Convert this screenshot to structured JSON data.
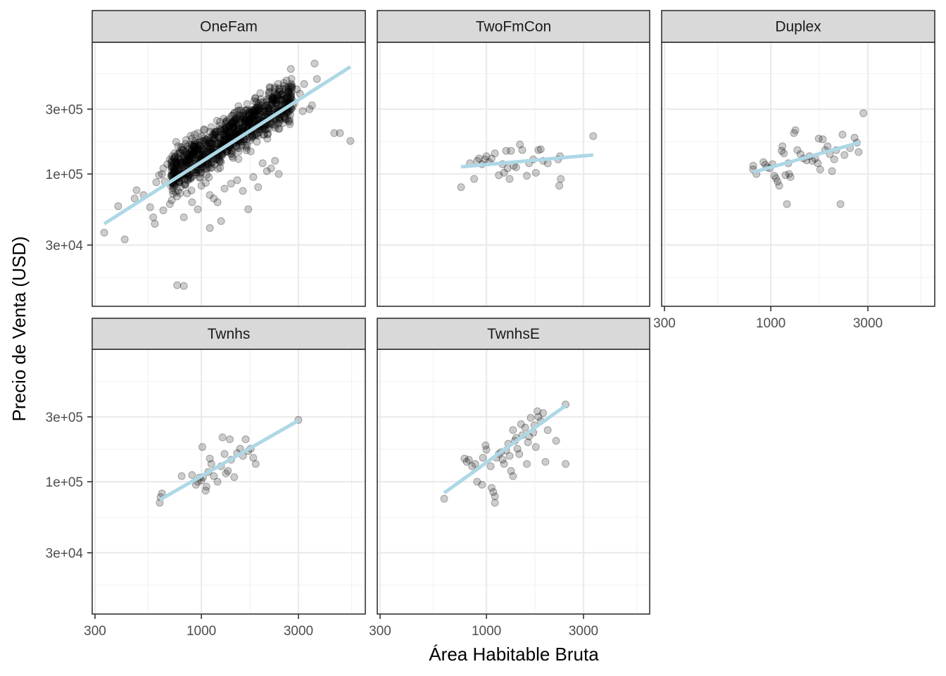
{
  "chart_data": {
    "type": "scatter",
    "layout": "facet_wrap",
    "xlabel": "Área Habitable Bruta",
    "ylabel": "Precio de Venta (USD)",
    "xscale": "log10",
    "yscale": "log10",
    "xlim": [
      290,
      6200
    ],
    "ylim": [
      13500,
      950000
    ],
    "x_ticks": [
      300,
      1000,
      3000
    ],
    "x_tick_labels": [
      "300",
      "1000",
      "3000"
    ],
    "y_ticks": [
      300000,
      100000,
      30000
    ],
    "y_tick_labels": [
      "3e+05",
      "1e+05",
      "3e+04"
    ],
    "grid": true,
    "point_color": "#000000",
    "point_alpha": 0.2,
    "fit_line_color": "#ADD8E6",
    "panels": [
      {
        "name": "OneFam",
        "fit_line": {
          "x": [
            333,
            5400
          ],
          "y": [
            43000,
            615000
          ]
        },
        "points": [
          [
            333,
            37000
          ],
          [
            390,
            58000
          ],
          [
            420,
            33000
          ],
          [
            470,
            66000
          ],
          [
            480,
            76000
          ],
          [
            520,
            70000
          ],
          [
            560,
            57000
          ],
          [
            580,
            48000
          ],
          [
            590,
            43000
          ],
          [
            600,
            87000
          ],
          [
            620,
            98000
          ],
          [
            640,
            100000
          ],
          [
            650,
            110000
          ],
          [
            660,
            88000
          ],
          [
            680,
            118000
          ],
          [
            700,
            128000
          ],
          [
            720,
            135000
          ],
          [
            740,
            108000
          ],
          [
            760,
            122000
          ],
          [
            780,
            142000
          ],
          [
            800,
            116000
          ],
          [
            820,
            150000
          ],
          [
            840,
            130000
          ],
          [
            860,
            96000
          ],
          [
            880,
            145000
          ],
          [
            900,
            162000
          ],
          [
            920,
            138000
          ],
          [
            940,
            118000
          ],
          [
            960,
            170000
          ],
          [
            980,
            150000
          ],
          [
            1000,
            132000
          ],
          [
            1020,
            175000
          ],
          [
            1040,
            160000
          ],
          [
            1060,
            140000
          ],
          [
            1080,
            185000
          ],
          [
            1100,
            168000
          ],
          [
            1120,
            150000
          ],
          [
            1140,
            195000
          ],
          [
            1160,
            175000
          ],
          [
            1180,
            158000
          ],
          [
            1200,
            205000
          ],
          [
            1220,
            185000
          ],
          [
            1240,
            165000
          ],
          [
            1260,
            215000
          ],
          [
            1280,
            195000
          ],
          [
            1300,
            172000
          ],
          [
            1330,
            225000
          ],
          [
            1360,
            205000
          ],
          [
            1390,
            180000
          ],
          [
            1420,
            240000
          ],
          [
            1450,
            215000
          ],
          [
            1480,
            190000
          ],
          [
            1510,
            255000
          ],
          [
            1540,
            230000
          ],
          [
            1570,
            200000
          ],
          [
            1600,
            270000
          ],
          [
            1640,
            245000
          ],
          [
            1680,
            215000
          ],
          [
            1720,
            285000
          ],
          [
            1760,
            260000
          ],
          [
            1800,
            230000
          ],
          [
            1840,
            300000
          ],
          [
            1880,
            275000
          ],
          [
            1920,
            245000
          ],
          [
            1960,
            320000
          ],
          [
            2000,
            290000
          ],
          [
            2050,
            260000
          ],
          [
            2100,
            340000
          ],
          [
            2150,
            310000
          ],
          [
            2200,
            275000
          ],
          [
            2260,
            360000
          ],
          [
            2320,
            330000
          ],
          [
            2380,
            290000
          ],
          [
            2450,
            380000
          ],
          [
            2520,
            350000
          ],
          [
            2600,
            310000
          ],
          [
            2680,
            400000
          ],
          [
            2760,
            370000
          ],
          [
            2850,
            330000
          ],
          [
            2950,
            420000
          ],
          [
            3050,
            390000
          ],
          [
            3150,
            290000
          ],
          [
            3200,
            460000
          ],
          [
            3400,
            300000
          ],
          [
            3500,
            320000
          ],
          [
            3600,
            650000
          ],
          [
            3700,
            500000
          ],
          [
            4500,
            200000
          ],
          [
            4800,
            200000
          ],
          [
            5400,
            175000
          ],
          [
            850,
            72000
          ],
          [
            900,
            62000
          ],
          [
            960,
            55000
          ],
          [
            1000,
            82000
          ],
          [
            1050,
            86000
          ],
          [
            1100,
            70000
          ],
          [
            1150,
            66000
          ],
          [
            1200,
            62000
          ],
          [
            1250,
            45000
          ],
          [
            1300,
            78000
          ],
          [
            1400,
            85000
          ],
          [
            1500,
            90000
          ],
          [
            1600,
            75000
          ],
          [
            1700,
            55000
          ],
          [
            1800,
            95000
          ],
          [
            1900,
            80000
          ],
          [
            2000,
            120000
          ],
          [
            2100,
            105000
          ],
          [
            2200,
            110000
          ],
          [
            2300,
            125000
          ],
          [
            2400,
            100000
          ],
          [
            760,
            15200
          ],
          [
            820,
            15000
          ],
          [
            700,
            60000
          ],
          [
            650,
            54000
          ],
          [
            1100,
            40000
          ],
          [
            820,
            48000
          ]
        ]
      },
      {
        "name": "TwoFmCon",
        "fit_line": {
          "x": [
            750,
            3350
          ],
          "y": [
            113000,
            138000
          ]
        },
        "points": [
          [
            750,
            80000
          ],
          [
            830,
            120000
          ],
          [
            870,
            92000
          ],
          [
            900,
            125000
          ],
          [
            920,
            130000
          ],
          [
            950,
            118000
          ],
          [
            980,
            128000
          ],
          [
            1000,
            135000
          ],
          [
            1030,
            122000
          ],
          [
            1060,
            130000
          ],
          [
            1100,
            142000
          ],
          [
            1150,
            98000
          ],
          [
            1200,
            118000
          ],
          [
            1220,
            102000
          ],
          [
            1250,
            148000
          ],
          [
            1270,
            110000
          ],
          [
            1300,
            92000
          ],
          [
            1320,
            148000
          ],
          [
            1360,
            115000
          ],
          [
            1400,
            112000
          ],
          [
            1460,
            165000
          ],
          [
            1500,
            150000
          ],
          [
            1580,
            97000
          ],
          [
            1620,
            120000
          ],
          [
            1700,
            128000
          ],
          [
            1750,
            102000
          ],
          [
            1800,
            150000
          ],
          [
            1850,
            152000
          ],
          [
            1900,
            125000
          ],
          [
            2000,
            120000
          ],
          [
            2250,
            128000
          ],
          [
            2280,
            82000
          ],
          [
            2320,
            92000
          ],
          [
            2300,
            135000
          ],
          [
            3350,
            190000
          ]
        ]
      },
      {
        "name": "Duplex",
        "fit_line": {
          "x": [
            818,
            2750
          ],
          "y": [
            103000,
            171000
          ]
        },
        "points": [
          [
            818,
            108000
          ],
          [
            820,
            115000
          ],
          [
            850,
            100000
          ],
          [
            920,
            122000
          ],
          [
            940,
            117000
          ],
          [
            960,
            112000
          ],
          [
            990,
            110000
          ],
          [
            1020,
            118000
          ],
          [
            1040,
            97000
          ],
          [
            1060,
            93000
          ],
          [
            1080,
            88000
          ],
          [
            1100,
            82000
          ],
          [
            1130,
            148000
          ],
          [
            1140,
            160000
          ],
          [
            1160,
            142000
          ],
          [
            1180,
            98000
          ],
          [
            1200,
            60000
          ],
          [
            1220,
            120000
          ],
          [
            1230,
            100000
          ],
          [
            1250,
            95000
          ],
          [
            1300,
            200000
          ],
          [
            1320,
            210000
          ],
          [
            1350,
            150000
          ],
          [
            1400,
            140000
          ],
          [
            1450,
            130000
          ],
          [
            1500,
            126000
          ],
          [
            1550,
            135000
          ],
          [
            1600,
            125000
          ],
          [
            1650,
            130000
          ],
          [
            1700,
            120000
          ],
          [
            1720,
            182000
          ],
          [
            1750,
            108000
          ],
          [
            1800,
            180000
          ],
          [
            1850,
            150000
          ],
          [
            1900,
            160000
          ],
          [
            1950,
            140000
          ],
          [
            2000,
            105000
          ],
          [
            2050,
            128000
          ],
          [
            2100,
            150000
          ],
          [
            2200,
            60000
          ],
          [
            2250,
            195000
          ],
          [
            2300,
            138000
          ],
          [
            2450,
            155000
          ],
          [
            2580,
            185000
          ],
          [
            2650,
            170000
          ],
          [
            2700,
            145000
          ],
          [
            2850,
            280000
          ]
        ]
      },
      {
        "name": "Twnhs",
        "fit_line": {
          "x": [
            624,
            3000
          ],
          "y": [
            73500,
            282000
          ]
        },
        "points": [
          [
            624,
            70000
          ],
          [
            630,
            77000
          ],
          [
            640,
            82000
          ],
          [
            800,
            110000
          ],
          [
            900,
            112000
          ],
          [
            940,
            95000
          ],
          [
            960,
            100000
          ],
          [
            980,
            107000
          ],
          [
            1000,
            102000
          ],
          [
            1010,
            180000
          ],
          [
            1020,
            108000
          ],
          [
            1050,
            86000
          ],
          [
            1060,
            92000
          ],
          [
            1080,
            118000
          ],
          [
            1100,
            148000
          ],
          [
            1120,
            135000
          ],
          [
            1150,
            110000
          ],
          [
            1200,
            100000
          ],
          [
            1250,
            130000
          ],
          [
            1270,
            212000
          ],
          [
            1300,
            160000
          ],
          [
            1320,
            115000
          ],
          [
            1350,
            120000
          ],
          [
            1380,
            205000
          ],
          [
            1400,
            145000
          ],
          [
            1450,
            108000
          ],
          [
            1500,
            162000
          ],
          [
            1550,
            175000
          ],
          [
            1600,
            155000
          ],
          [
            1650,
            205000
          ],
          [
            1700,
            168000
          ],
          [
            1750,
            175000
          ],
          [
            1800,
            150000
          ],
          [
            1850,
            135000
          ],
          [
            3000,
            285000
          ]
        ]
      },
      {
        "name": "TwnhsE",
        "fit_line": {
          "x": [
            620,
            2475
          ],
          "y": [
            82800,
            367000
          ]
        },
        "points": [
          [
            620,
            75000
          ],
          [
            780,
            148000
          ],
          [
            800,
            140000
          ],
          [
            820,
            145000
          ],
          [
            850,
            130000
          ],
          [
            880,
            135000
          ],
          [
            900,
            100000
          ],
          [
            950,
            95000
          ],
          [
            960,
            150000
          ],
          [
            990,
            185000
          ],
          [
            1000,
            172000
          ],
          [
            1050,
            130000
          ],
          [
            1060,
            90000
          ],
          [
            1080,
            84000
          ],
          [
            1100,
            78000
          ],
          [
            1100,
            70000
          ],
          [
            1120,
            150000
          ],
          [
            1150,
            160000
          ],
          [
            1180,
            165000
          ],
          [
            1200,
            145000
          ],
          [
            1220,
            135000
          ],
          [
            1250,
            170000
          ],
          [
            1280,
            190000
          ],
          [
            1300,
            155000
          ],
          [
            1320,
            120000
          ],
          [
            1350,
            110000
          ],
          [
            1350,
            240000
          ],
          [
            1380,
            200000
          ],
          [
            1400,
            210000
          ],
          [
            1420,
            175000
          ],
          [
            1450,
            160000
          ],
          [
            1480,
            265000
          ],
          [
            1500,
            220000
          ],
          [
            1550,
            250000
          ],
          [
            1580,
            135000
          ],
          [
            1600,
            195000
          ],
          [
            1620,
            215000
          ],
          [
            1650,
            295000
          ],
          [
            1700,
            230000
          ],
          [
            1720,
            260000
          ],
          [
            1750,
            180000
          ],
          [
            1780,
            330000
          ],
          [
            1800,
            300000
          ],
          [
            1850,
            280000
          ],
          [
            1900,
            320000
          ],
          [
            1950,
            140000
          ],
          [
            2000,
            240000
          ],
          [
            2200,
            200000
          ],
          [
            2450,
            370000
          ],
          [
            2450,
            135000
          ]
        ]
      }
    ]
  }
}
